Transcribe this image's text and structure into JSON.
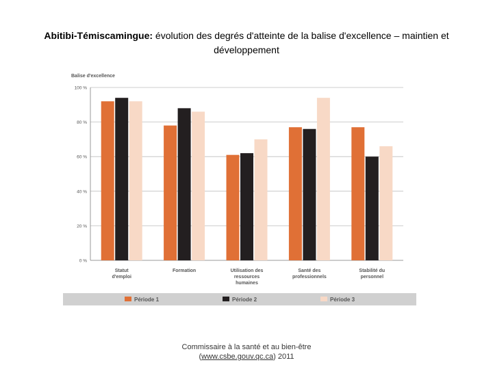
{
  "title": {
    "region": "Abitibi-Témiscamingue:",
    "text": "évolution des degrés d'atteinte de la balise d'excellence – maintien et développement"
  },
  "footer": {
    "line1": "Commissaire à la santé et au bien-être",
    "link": "www.csbe.gouv.qc.ca",
    "year": ") 2011"
  },
  "colors": {
    "p1": "#E07036",
    "p2": "#231F20",
    "p3": "#F8D9C6",
    "legend_bg": "#D0D0D0",
    "grid": "#BDBDBD"
  },
  "chart_data": {
    "type": "bar",
    "ylabel": "Balise d'excellence",
    "ylim": [
      0,
      100
    ],
    "yticks": [
      "0 %",
      "20 %",
      "40 %",
      "60 %",
      "80 %",
      "100 %"
    ],
    "categories": [
      [
        "Statut",
        "d'emploi"
      ],
      [
        "Formation"
      ],
      [
        "Utilisation des",
        "ressources",
        "humaines"
      ],
      [
        "Santé des",
        "professionnels"
      ],
      [
        "Stabilité du",
        "personnel"
      ]
    ],
    "series": [
      {
        "name": "Période 1",
        "values": [
          92,
          78,
          61,
          77,
          77
        ]
      },
      {
        "name": "Période 2",
        "values": [
          94,
          88,
          62,
          76,
          60
        ]
      },
      {
        "name": "Période 3",
        "values": [
          92,
          86,
          70,
          94,
          66
        ]
      }
    ],
    "legend": "bottom",
    "grid": true
  }
}
